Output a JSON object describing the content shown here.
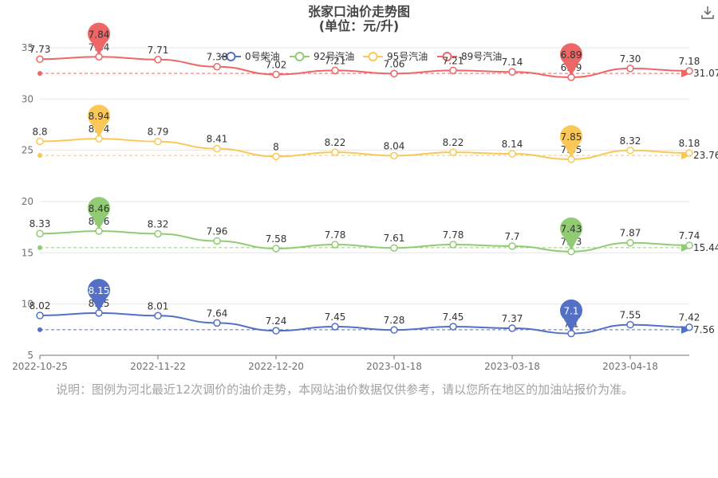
{
  "chart_data": {
    "type": "line",
    "title": "张家口油价走势图",
    "subtitle": "(单位：元/升)",
    "x_ticks": [
      "2022-10-25",
      "2022-11-22",
      "2022-12-20",
      "2023-01-18",
      "2023-03-18",
      "2023-04-18"
    ],
    "y_ticks": [
      "5",
      "10",
      "15",
      "20",
      "25",
      "30",
      "35"
    ],
    "ylim": [
      5,
      35
    ],
    "grid": true,
    "legend_position": "top-center",
    "series": [
      {
        "name": "0号柴油",
        "color": "#5470c6",
        "values": [
          8.02,
          8.15,
          8.01,
          7.64,
          7.24,
          7.45,
          7.28,
          7.45,
          7.37,
          7.1,
          7.55,
          7.42
        ],
        "labels": [
          "8.02",
          "8.15",
          "8.01",
          "7.64",
          "7.24",
          "7.45",
          "7.28",
          "7.45",
          "7.37",
          "7.1",
          "7.55",
          "7.42"
        ],
        "max_pin": "8.15",
        "min_pin": "7.1",
        "average_label": "7.56"
      },
      {
        "name": "92号汽油",
        "color": "#91cc75",
        "values": [
          8.33,
          8.46,
          8.32,
          7.96,
          7.58,
          7.78,
          7.61,
          7.78,
          7.7,
          7.43,
          7.87,
          7.74
        ],
        "labels": [
          "8.33",
          "8.46",
          "8.32",
          "7.96",
          "7.58",
          "7.78",
          "7.61",
          "7.78",
          "7.7",
          "7.43",
          "7.87",
          "7.74"
        ],
        "max_pin": "8.46",
        "min_pin": "7.43",
        "average_label": "15.44"
      },
      {
        "name": "95号汽油",
        "color": "#fac858",
        "values": [
          8.8,
          8.94,
          8.79,
          8.41,
          8,
          8.22,
          8.04,
          8.22,
          8.14,
          7.85,
          8.32,
          8.18
        ],
        "labels": [
          "8.8",
          "8.94",
          "8.79",
          "8.41",
          "8",
          "8.22",
          "8.04",
          "8.22",
          "8.14",
          "7.85",
          "8.32",
          "8.18"
        ],
        "max_pin": "8.94",
        "min_pin": "7.85",
        "average_label": "23.76"
      },
      {
        "name": "89号汽油",
        "color": "#ee6666",
        "values": [
          7.73,
          7.84,
          7.71,
          7.38,
          7.02,
          7.21,
          7.06,
          7.21,
          7.14,
          6.89,
          7.3,
          7.18
        ],
        "labels": [
          "7.73",
          "7.84",
          "7.71",
          "7.38",
          "7.02",
          "7.21",
          "7.06",
          "7.21",
          "7.14",
          "6.89",
          "7.30",
          "7.18"
        ],
        "max_pin": "7.84",
        "min_pin": "6.89",
        "average_label": "31.07"
      }
    ]
  },
  "note": "说明：图例为河北最近12次调价的油价走势，本网站油价数据仅供参考，请以您所在地区的加油站报价为准。",
  "download_icon": "download-icon"
}
